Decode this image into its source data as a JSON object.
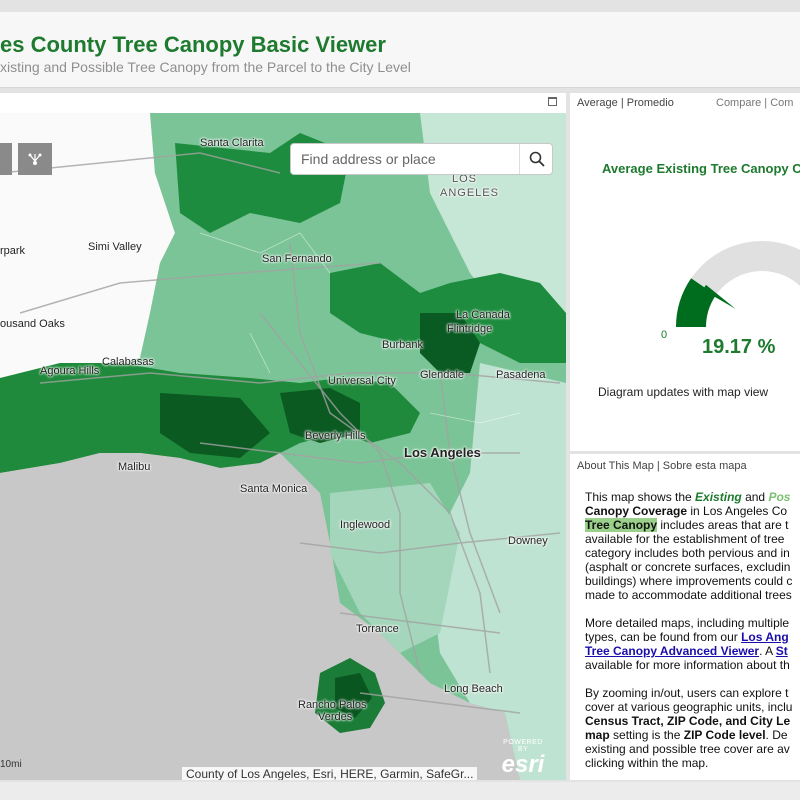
{
  "header": {
    "title": "es County Tree Canopy Basic Viewer",
    "subtitle": "xisting and Possible Tree Canopy from the Parcel to the City Level"
  },
  "map": {
    "search_placeholder": "Find address or place",
    "attribution": "County of Los Angeles, Esri, HERE, Garmin, SafeGr...",
    "esri_powered": "POWERED BY",
    "esri_name": "esri",
    "scale": "10mi",
    "labels": {
      "santa_clarita": "Santa Clarita",
      "los_angeles_n1": "LOS",
      "los_angeles_n2": "ANGELES",
      "simi_valley": "Simi Valley",
      "rpark": "rpark",
      "san_fernando": "San Fernando",
      "thousand_oaks": "ousand Oaks",
      "agoura_hills": "Agoura Hills",
      "calabasas": "Calabasas",
      "burbank": "Burbank",
      "la_canada": "La Canada",
      "flintridge": "Flintridge",
      "glendale": "Glendale",
      "pasadena": "Pasadena",
      "universal_city": "Universal City",
      "beverly_hills": "Beverly Hills",
      "los_angeles": "Los Angeles",
      "malibu": "Malibu",
      "santa_monica": "Santa Monica",
      "inglewood": "Inglewood",
      "downey": "Downey",
      "torrance": "Torrance",
      "long_beach": "Long Beach",
      "rancho_palos1": "Rancho Palos",
      "rancho_palos2": "Verdes"
    }
  },
  "gauge_panel": {
    "tab_average": "Average | Promedio",
    "tab_compare": "Compare | Com",
    "title": "Average Existing Tree Canopy C",
    "min_label": "0",
    "value_text": "19.17 %",
    "value": 19.17,
    "note": "Diagram updates with map view"
  },
  "about_panel": {
    "tab": "About This Map | Sobre esta mapa",
    "p1": {
      "l1a": "This map shows the ",
      "l1b": "Existing",
      "l1c": " and ",
      "l1d": "Pos",
      "l2a": "Canopy Coverage",
      "l2b": " in Los Angeles Co",
      "l3a": "Tree Canopy",
      "l3b": " includes areas that are t",
      "l4": "available for the establishment of tree",
      "l5": "category includes both pervious and in",
      "l6": "(asphalt or concrete surfaces, excludin",
      "l7": "buildings) where improvements could c",
      "l8": "made to accommodate additional trees"
    },
    "p2": {
      "l1": "More detailed maps, including multiple",
      "l2": "types, can be found from our ",
      "l2link": "Los Ang",
      "l3link": "Tree Canopy Advanced Viewer",
      "l3b": ". A ",
      "l3link2": "St",
      "l4": "available for more information about th"
    },
    "p3": {
      "l1": "By zooming in/out, users can explore t",
      "l2": "cover at various geographic units, inclu",
      "l3": "Census Tract, ZIP Code, and City Le",
      "l4a": "map",
      "l4b": " setting is the ",
      "l4c": "ZIP Code level",
      "l4d": ". De",
      "l5": "existing and possible tree cover are av",
      "l6": "clicking within the map."
    }
  },
  "colors": {
    "brand_green": "#1d7a2e",
    "gauge_fill": "#006d1e",
    "gauge_track": "#e0e0e0"
  }
}
